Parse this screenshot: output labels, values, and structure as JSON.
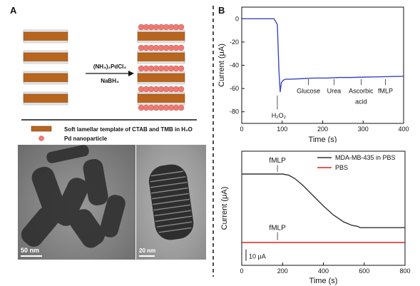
{
  "panels": {
    "a": "A",
    "b": "B"
  },
  "schematic": {
    "reagent_top": "(NH₄)₂PdCl₄",
    "reagent_bottom": "NaBH₄",
    "legend": [
      {
        "label": "Soft lamellar template of CTAB and TMB in H₂O"
      },
      {
        "label": "Pd nanoparticle"
      }
    ]
  },
  "tem": {
    "left_scale": "50 nm",
    "right_scale": "20 nm"
  },
  "colors": {
    "blue": "#3b46c4",
    "red": "#e0201c",
    "layer": "#b8651f",
    "pd": "#ef7a72"
  },
  "chart_data": [
    {
      "type": "line",
      "xlabel": "Time (s)",
      "ylabel": "Current (μA)",
      "xlim": [
        0,
        400
      ],
      "ylim": [
        -90,
        10
      ],
      "xticks": [
        "0",
        "100",
        "200",
        "300",
        "400"
      ],
      "yticks": [
        "0",
        "-20",
        "-40",
        "-60",
        "-80"
      ],
      "x": [
        0,
        80,
        88,
        92,
        95,
        98,
        102,
        108,
        120,
        150,
        180,
        210,
        240,
        270,
        300,
        330,
        360,
        400
      ],
      "y": [
        0,
        0,
        -5,
        -45,
        -63,
        -55,
        -53,
        -52,
        -52,
        -51.5,
        -51,
        -51,
        -50.5,
        -50.5,
        -50.2,
        -50,
        -49.8,
        -49.5
      ],
      "annotations": [
        {
          "text": "H₂O₂",
          "x": 88
        },
        {
          "text": "Glucose",
          "x": 165
        },
        {
          "text": "Urea",
          "x": 228
        },
        {
          "text": "Ascorbic",
          "x": 295
        },
        {
          "text": "acid",
          "x": 295
        },
        {
          "text": "fMLP",
          "x": 355
        }
      ]
    },
    {
      "type": "line",
      "xlabel": "Time (s)",
      "ylabel": "Current (μA)",
      "xlim": [
        0,
        800
      ],
      "ylim": [
        0,
        100
      ],
      "xticks": [
        "0",
        "200",
        "400",
        "600",
        "800"
      ],
      "scale_label": "10 μA",
      "series": [
        {
          "name": "MDA-MB-435 in PBS",
          "color": "#333333",
          "x": [
            0,
            200,
            230,
            260,
            300,
            350,
            400,
            450,
            500,
            540,
            570,
            580,
            600,
            700,
            800
          ],
          "y": [
            80,
            80,
            79,
            76,
            70,
            61,
            52,
            44,
            38,
            35,
            34,
            33,
            33,
            33,
            33
          ]
        },
        {
          "name": "PBS",
          "color": "#e0201c",
          "x": [
            0,
            800
          ],
          "y": [
            20,
            20
          ]
        }
      ],
      "annotations": [
        {
          "text": "fMLP",
          "x": 175
        },
        {
          "text": "fMLP",
          "x": 175
        }
      ]
    }
  ]
}
